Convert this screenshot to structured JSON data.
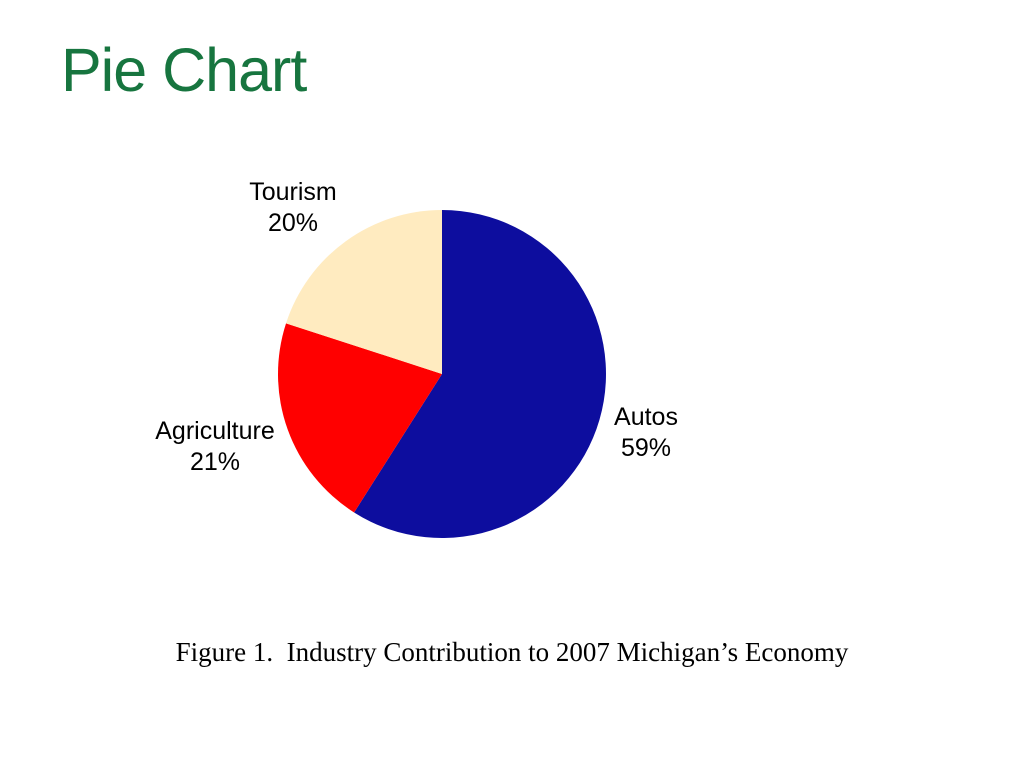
{
  "slide": {
    "title": "Pie Chart",
    "caption": "Figure 1.  Industry Contribution to 2007 Michigan’s Economy"
  },
  "colors": {
    "title_green": "#17753F",
    "background": "#FFFFFF",
    "label_text": "#000000"
  },
  "chart_data": {
    "type": "pie",
    "title": "Figure 1.  Industry Contribution to 2007 Michigan’s Economy",
    "categories": [
      "Autos",
      "Agriculture",
      "Tourism"
    ],
    "values": [
      59,
      21,
      20
    ],
    "unit": "percent",
    "start_angle": "12-o'clock",
    "direction": "clockwise",
    "legend": "none",
    "slices": [
      {
        "label": "Autos",
        "pct_label": "59%",
        "value": 59,
        "color": "#0D0D9E"
      },
      {
        "label": "Agriculture",
        "pct_label": "21%",
        "value": 21,
        "color": "#FF0000"
      },
      {
        "label": "Tourism",
        "pct_label": "20%",
        "value": 20,
        "color": "#FFEBC0"
      }
    ]
  }
}
